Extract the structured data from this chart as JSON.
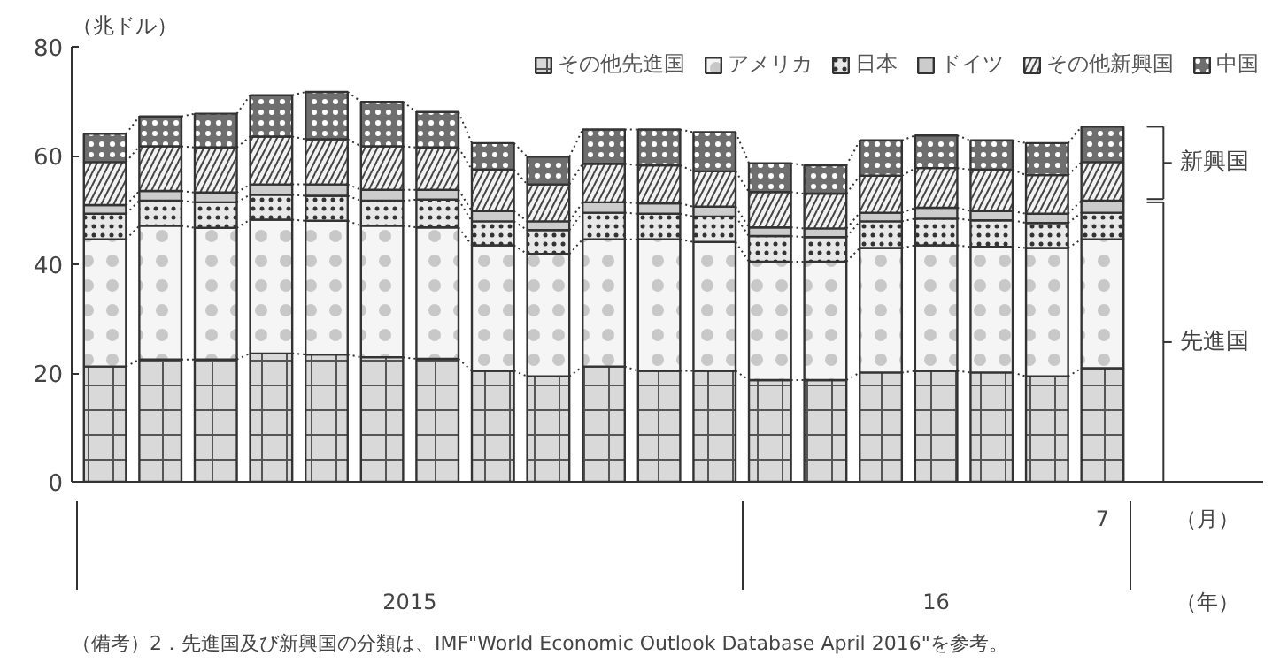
{
  "chart_data": {
    "type": "bar",
    "stacked": true,
    "ylabel": "（兆ドル）",
    "xlabel": "（月）",
    "categories": [
      null,
      null,
      null,
      null,
      null,
      null,
      null,
      null,
      null,
      null,
      null,
      null,
      null,
      null,
      null,
      null,
      null,
      null,
      "7"
    ],
    "series": [
      {
        "name": "その他先進国",
        "color": "#d9d9d9",
        "values": [
          21.2,
          22.5,
          22.5,
          23.6,
          23.4,
          22.9,
          22.6,
          20.4,
          19.4,
          21.2,
          20.4,
          20.4,
          18.7,
          18.7,
          20.1,
          20.4,
          20.1,
          19.4,
          20.9
        ]
      },
      {
        "name": "アメリカ",
        "color": "#f5f5f5",
        "values": [
          23.4,
          24.6,
          24.2,
          24.6,
          24.6,
          24.2,
          24.2,
          23.1,
          22.5,
          23.4,
          24.2,
          23.7,
          21.8,
          21.8,
          22.9,
          23.1,
          23.1,
          23.6,
          23.7
        ]
      },
      {
        "name": "日本",
        "color": "#e8e8e8",
        "values": [
          4.7,
          4.6,
          4.7,
          4.6,
          4.6,
          4.6,
          5.1,
          4.4,
          4.4,
          4.9,
          4.7,
          4.7,
          4.7,
          4.5,
          4.9,
          4.9,
          4.9,
          4.6,
          4.9
        ]
      },
      {
        "name": "ドイツ",
        "color": "#cccccc",
        "values": [
          1.6,
          1.8,
          1.8,
          1.9,
          2.1,
          2.0,
          1.8,
          1.9,
          1.6,
          1.9,
          1.9,
          1.8,
          1.6,
          1.6,
          1.6,
          2.0,
          1.7,
          1.7,
          2.2
        ]
      },
      {
        "name": "その他新興国",
        "color": "#f2f2f2",
        "values": [
          7.9,
          8.2,
          8.3,
          8.8,
          8.3,
          8.0,
          7.8,
          7.6,
          6.8,
          7.1,
          7.0,
          6.5,
          6.5,
          6.4,
          6.8,
          7.3,
          7.6,
          7.1,
          7.1
        ]
      },
      {
        "name": "中国",
        "color": "#6e6e6e",
        "values": [
          5.2,
          5.5,
          6.2,
          7.6,
          8.7,
          8.2,
          6.5,
          4.9,
          5.1,
          6.3,
          6.6,
          7.2,
          5.3,
          5.2,
          6.5,
          6.0,
          5.4,
          5.9,
          6.5
        ]
      }
    ],
    "ylim": [
      0,
      80
    ],
    "yticks": [
      0,
      20,
      40,
      60,
      80
    ],
    "grid": false,
    "legend": "top",
    "annotations": [
      "2015",
      "16",
      "（年）",
      "先進国",
      "新興国",
      "（備考）2．先進国及び新興国の分類は、IMF\"World Economic Outlook Database April 2016\"を参考。"
    ]
  }
}
